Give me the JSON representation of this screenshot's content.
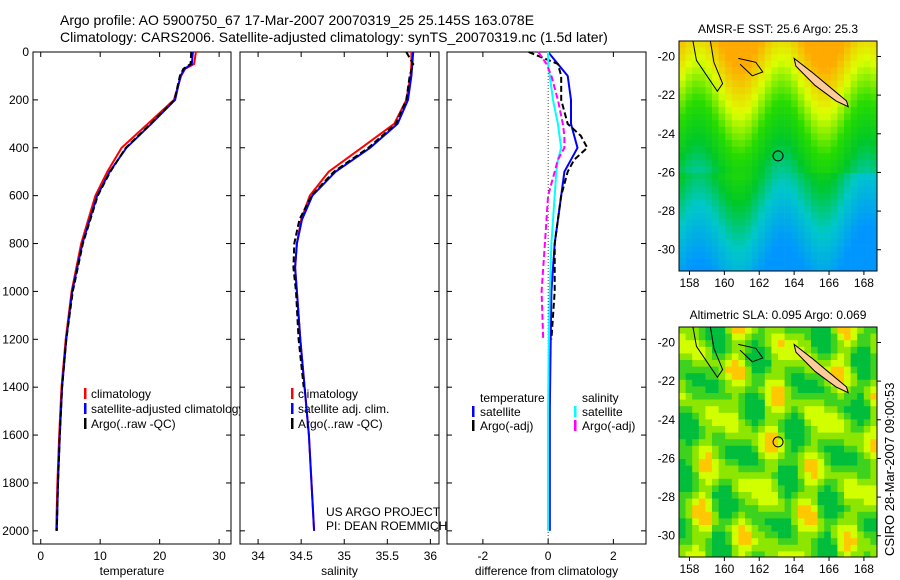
{
  "title_line1": "Argo profile: AO 5900750_67 17-Mar-2007 20070319_25 25.145S 163.078E",
  "title_line2": "Climatology: CARS2006. Satellite-adjusted climatology: synTS_20070319.nc (1.5d later)",
  "credit_line1": "US ARGO PROJECT",
  "credit_line2": "PI: DEAN ROEMMICH",
  "stamp": "CSIRO 28-Mar-2007 09:00:53",
  "colors": {
    "climatology": "#ff0000",
    "satellite": "#0000ff",
    "argo": "#000000",
    "sal_satellite": "#00ffff",
    "sal_argo": "#ff00ff"
  },
  "chart_data": [
    {
      "type": "line",
      "xlabel": "temperature",
      "xlim": [
        -1.3,
        32
      ],
      "ylim": [
        0,
        2055
      ],
      "xticks": [
        0,
        10,
        20,
        30
      ],
      "yticks": [
        0,
        200,
        400,
        600,
        800,
        1000,
        1200,
        1400,
        1600,
        1800,
        2000
      ],
      "legend": [
        "climatology",
        "satellite-adjusted climatology",
        "Argo(..raw -QC)"
      ],
      "legend_position": "bottom-right",
      "depth": [
        0,
        50,
        70,
        100,
        200,
        300,
        400,
        500,
        600,
        800,
        1000,
        1200,
        1400,
        1600,
        1800,
        2000
      ],
      "series": [
        {
          "name": "climatology",
          "values": [
            26.1,
            25.8,
            24.3,
            23.6,
            22.4,
            18,
            13.6,
            11.2,
            9.2,
            6.8,
            5.2,
            4.2,
            3.5,
            3.1,
            2.8,
            2.6
          ]
        },
        {
          "name": "satellite-adjusted climatology",
          "values": [
            25.6,
            25.4,
            24.2,
            23.5,
            22.6,
            18.6,
            14.4,
            11.6,
            9.5,
            7,
            5.3,
            4.3,
            3.6,
            3.2,
            2.9,
            2.7
          ]
        },
        {
          "name": "Argo(..raw -QC)",
          "values": [
            25.3,
            25.2,
            24,
            23.4,
            22.5,
            18.5,
            14.3,
            11.7,
            9.6,
            7.1,
            5.4,
            4.3,
            3.6,
            3.2,
            2.9,
            2.7
          ]
        }
      ]
    },
    {
      "type": "line",
      "xlabel": "salinity",
      "xlim": [
        33.79,
        36.1
      ],
      "ylim": [
        0,
        2055
      ],
      "xticks": [
        34,
        34.5,
        35,
        35.5,
        36
      ],
      "legend": [
        "climatology",
        "satellite adj. clim.",
        "Argo(..raw -QC)"
      ],
      "legend_position": "bottom-right",
      "depth": [
        0,
        50,
        100,
        200,
        300,
        400,
        500,
        600,
        700,
        800,
        900,
        1000,
        1200,
        1400,
        1600,
        2000
      ],
      "series": [
        {
          "name": "climatology",
          "values": [
            35.78,
            35.78,
            35.77,
            35.72,
            35.58,
            35.2,
            34.82,
            34.6,
            34.5,
            34.45,
            34.43,
            34.45,
            34.49,
            34.54,
            34.59,
            34.65
          ]
        },
        {
          "name": "satellite adj. clim.",
          "values": [
            35.8,
            35.79,
            35.78,
            35.74,
            35.62,
            35.3,
            34.9,
            34.63,
            34.51,
            34.45,
            34.43,
            34.45,
            34.49,
            34.54,
            34.59,
            34.65
          ]
        },
        {
          "name": "Argo(..raw -QC)",
          "values": [
            35.72,
            35.8,
            35.76,
            35.72,
            35.6,
            35.28,
            34.88,
            34.62,
            34.48,
            34.42,
            34.41,
            34.44,
            34.47,
            34.53,
            null,
            null
          ]
        }
      ]
    },
    {
      "type": "line",
      "xlabel": "difference from climatology",
      "xlim": [
        -3.1,
        3.0
      ],
      "ylim": [
        0,
        2055
      ],
      "xticks": [
        -2,
        0,
        2
      ],
      "legend_groups": [
        {
          "title": "temperature",
          "items": [
            "satellite",
            "Argo(-adj)"
          ]
        },
        {
          "title": "salinity",
          "items": [
            "satellite",
            "Argo(-adj)"
          ]
        }
      ],
      "legend_position": "bottom",
      "depth": [
        0,
        50,
        100,
        200,
        300,
        350,
        400,
        450,
        500,
        600,
        800,
        1000,
        1200,
        1500,
        2000
      ],
      "series": [
        {
          "name": "temperature satellite",
          "values": [
            0,
            0.3,
            0.6,
            0.7,
            0.7,
            0.8,
            0.9,
            0.7,
            0.5,
            0.4,
            0.2,
            0.1,
            0.08,
            0.05,
            0.05
          ]
        },
        {
          "name": "temperature Argo(-adj)",
          "values": [
            -0.6,
            0.3,
            0.4,
            0.4,
            0.6,
            1.0,
            1.2,
            0.8,
            0.6,
            0.4,
            0.2,
            0.2,
            0.1,
            null,
            null
          ]
        },
        {
          "name": "salinity satellite",
          "values": [
            0,
            0,
            0.05,
            0.15,
            0.3,
            0.35,
            0.4,
            0.3,
            0.25,
            0.2,
            0.1,
            0.05,
            0.02,
            0,
            0
          ]
        },
        {
          "name": "salinity Argo(-adj)",
          "values": [
            -0.3,
            -0.05,
            0.1,
            0.3,
            0.45,
            0.5,
            0.5,
            0.3,
            0.2,
            0,
            -0.1,
            -0.2,
            -0.15,
            null,
            null
          ]
        }
      ]
    },
    {
      "type": "heatmap",
      "title": "AMSR-E SST: 25.6 Argo: 25.3",
      "xlim": [
        157.4,
        168.75
      ],
      "ylim": [
        -31.1,
        -19.2
      ],
      "xticks": [
        158,
        160,
        162,
        164,
        166,
        168
      ],
      "yticks": [
        -20,
        -22,
        -24,
        -26,
        -28,
        -30
      ],
      "marker": {
        "lon": 163.078,
        "lat": -25.145
      }
    },
    {
      "type": "heatmap",
      "title": "Altimetric SLA: 0.095 Argo: 0.069",
      "xlim": [
        157.4,
        168.75
      ],
      "ylim": [
        -31.1,
        -19.2
      ],
      "xticks": [
        158,
        160,
        162,
        164,
        166,
        168
      ],
      "yticks": [
        -20,
        -22,
        -24,
        -26,
        -28,
        -30
      ],
      "marker": {
        "lon": 163.078,
        "lat": -25.145
      }
    }
  ]
}
